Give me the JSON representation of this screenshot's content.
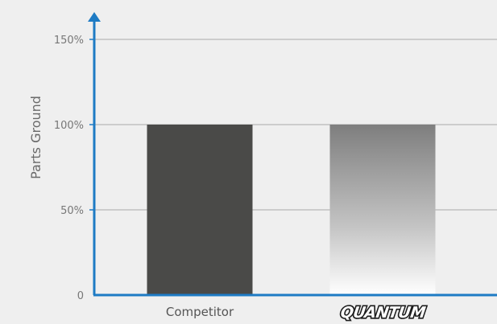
{
  "chart_data": {
    "type": "bar",
    "title": "",
    "ylabel": "Parts Ground",
    "xlabel": "",
    "categories": [
      "Competitor",
      "QUANTUM"
    ],
    "values": [
      100,
      100
    ],
    "ylim": [
      0,
      160
    ],
    "yticks": [
      {
        "value": 0,
        "label": "0"
      },
      {
        "value": 50,
        "label": "50%"
      },
      {
        "value": 100,
        "label": "100%"
      },
      {
        "value": 150,
        "label": "150%"
      }
    ],
    "grid": true,
    "legend": "none",
    "colors": {
      "competitor_bar": "#4a4a48",
      "quantum_bar_top": "#7e7e7e",
      "quantum_bar_bottom": "#ffffff",
      "axis": "#1e7bc4",
      "grid": "#a8a8a8",
      "background": "#efefef"
    }
  }
}
